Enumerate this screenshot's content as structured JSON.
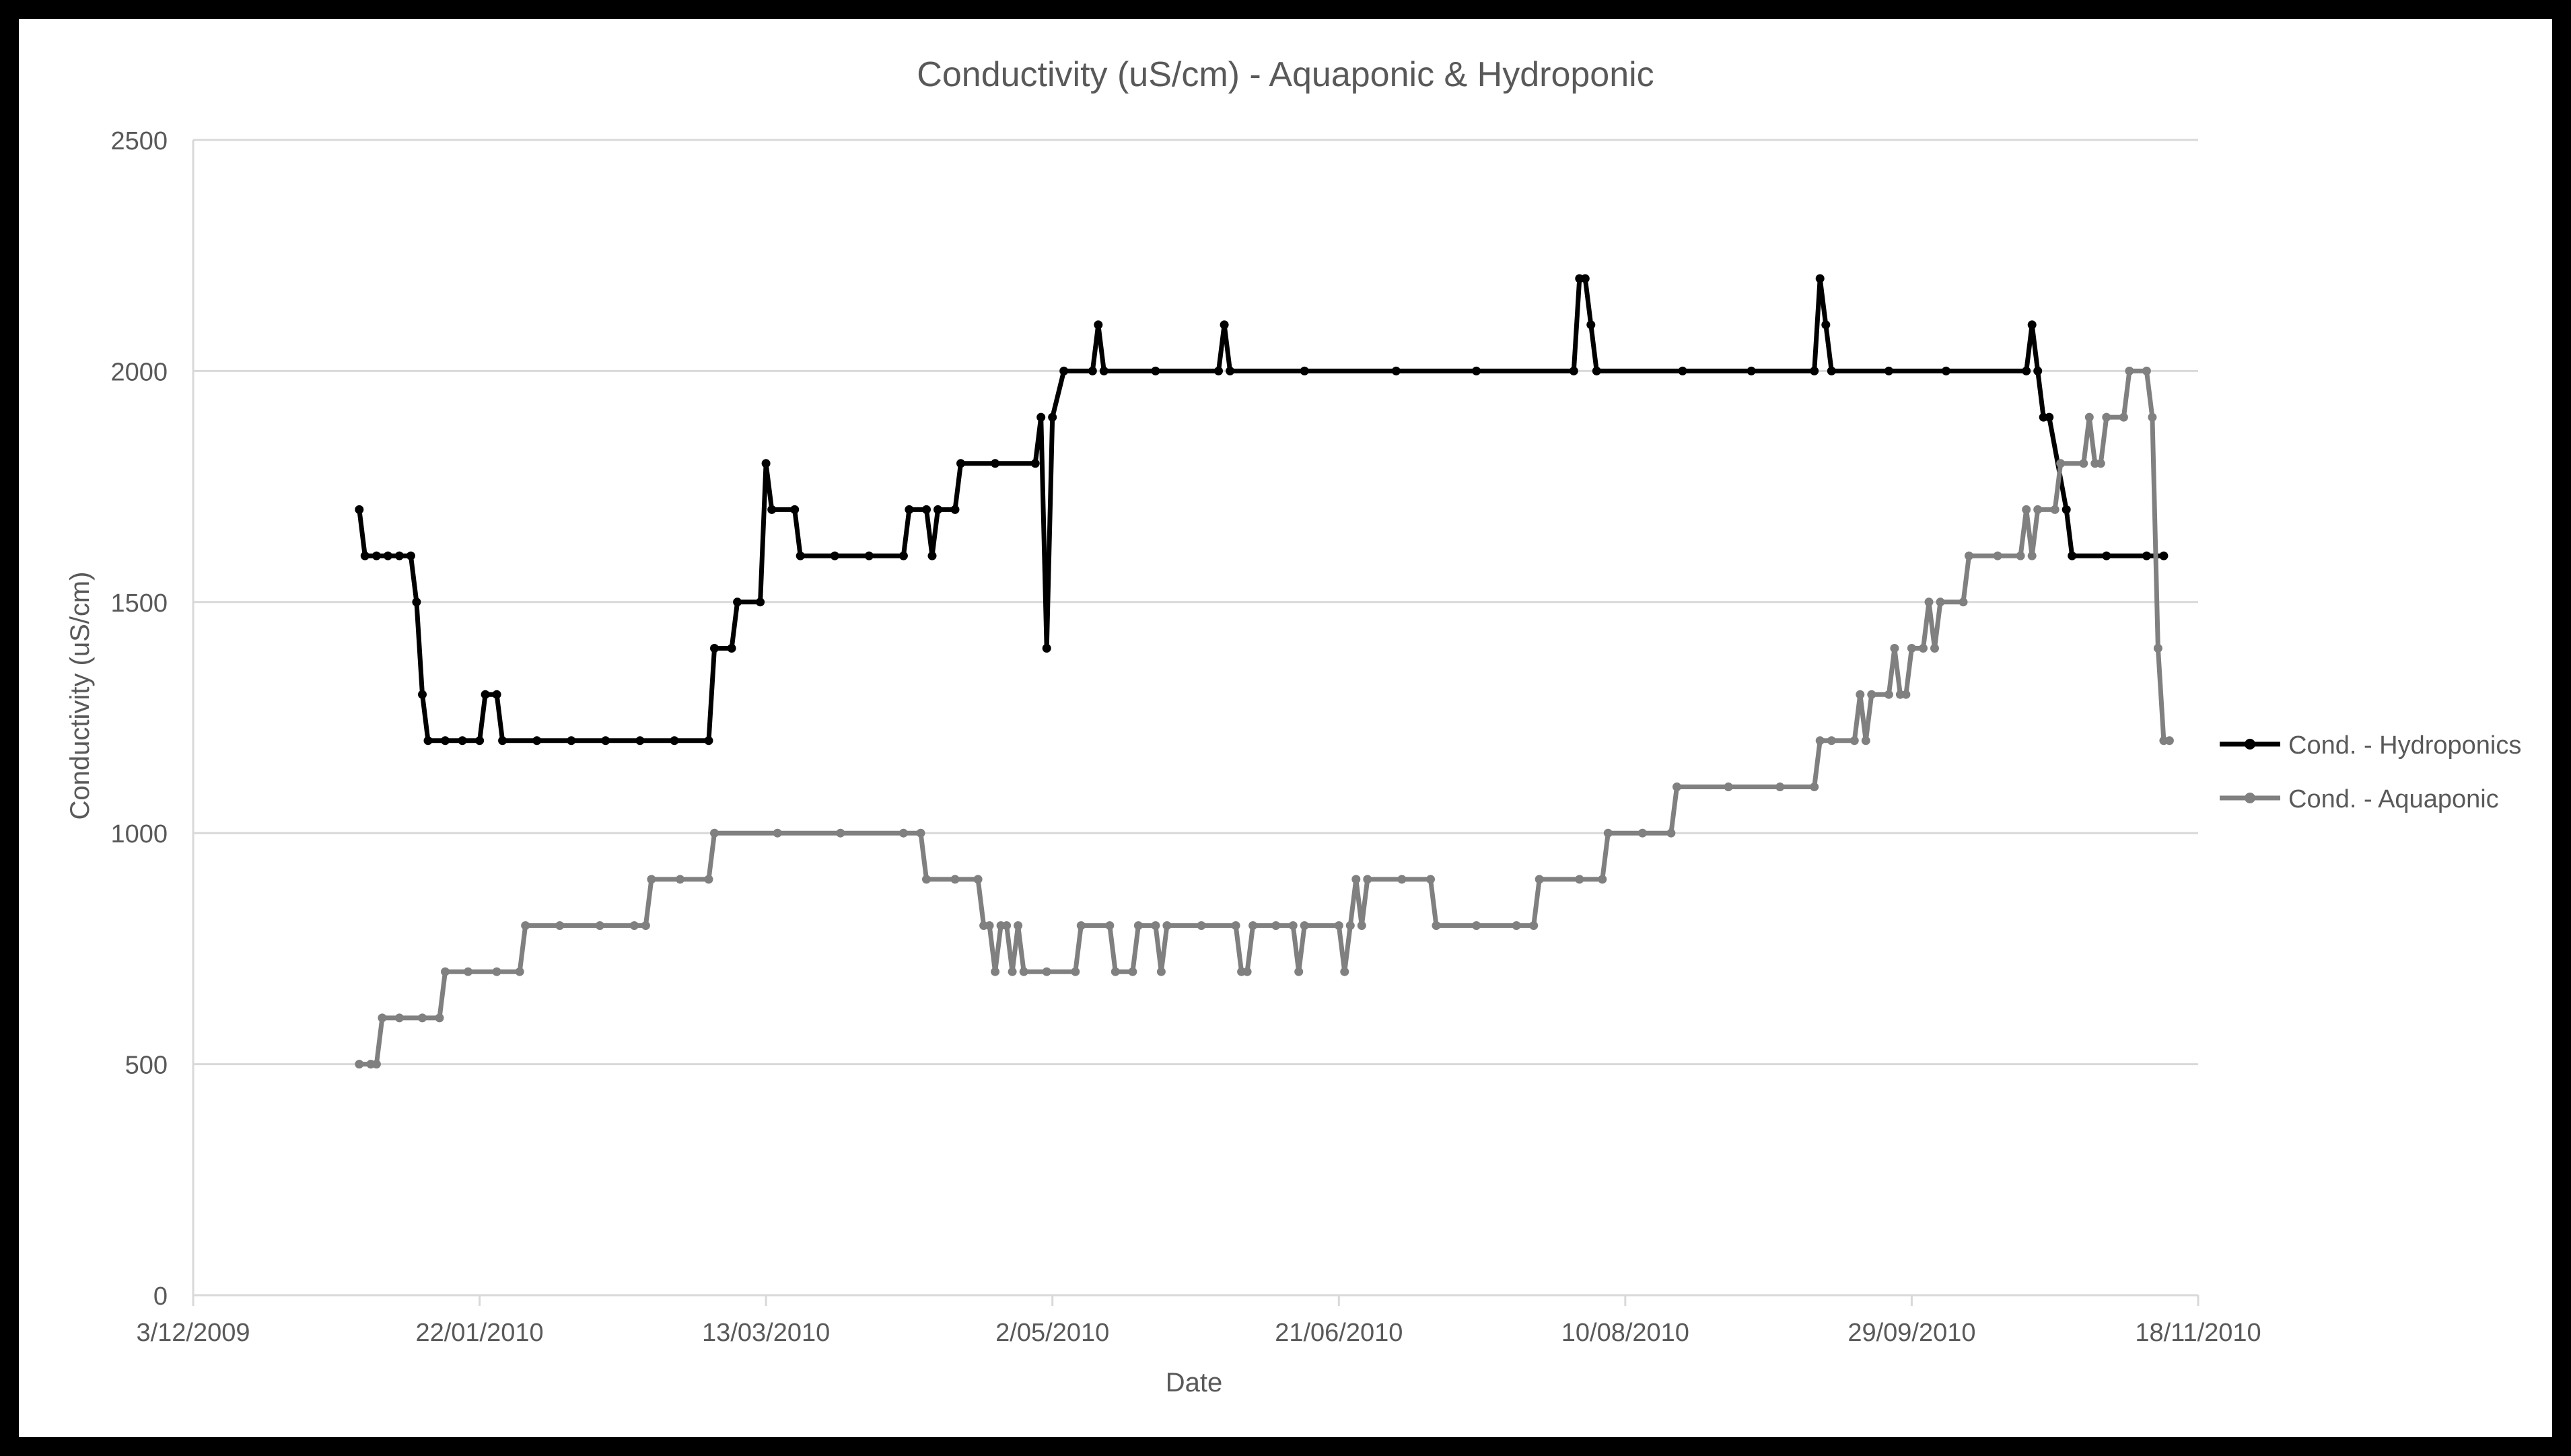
{
  "chart_data": {
    "type": "line",
    "title": "Conductivity (uS/cm) - Aquaponic & Hydroponic",
    "xlabel": "Date",
    "ylabel": "Conductivity (uS/cm)",
    "ylim": [
      0,
      2500
    ],
    "y_ticks": [
      0,
      500,
      1000,
      1500,
      2000,
      2500
    ],
    "xlim": [
      "2009-12-03",
      "2010-11-18"
    ],
    "x_ticks": [
      "2009-12-03",
      "2010-01-22",
      "2010-03-13",
      "2010-05-02",
      "2010-06-21",
      "2010-08-10",
      "2010-09-29",
      "2010-11-18"
    ],
    "x_tick_labels": [
      "3/12/2009",
      "22/01/2010",
      "13/03/2010",
      "2/05/2010",
      "21/06/2010",
      "10/08/2010",
      "29/09/2010",
      "18/11/2010"
    ],
    "grid": true,
    "legend_position": "right",
    "series": [
      {
        "name": "Cond. - Hydroponics",
        "color": "#000000",
        "points": [
          [
            "2010-01-01",
            1700
          ],
          [
            "2010-01-02",
            1600
          ],
          [
            "2010-01-04",
            1600
          ],
          [
            "2010-01-06",
            1600
          ],
          [
            "2010-01-08",
            1600
          ],
          [
            "2010-01-10",
            1600
          ],
          [
            "2010-01-11",
            1500
          ],
          [
            "2010-01-12",
            1300
          ],
          [
            "2010-01-13",
            1200
          ],
          [
            "2010-01-16",
            1200
          ],
          [
            "2010-01-19",
            1200
          ],
          [
            "2010-01-22",
            1200
          ],
          [
            "2010-01-23",
            1300
          ],
          [
            "2010-01-25",
            1300
          ],
          [
            "2010-01-26",
            1200
          ],
          [
            "2010-02-01",
            1200
          ],
          [
            "2010-02-07",
            1200
          ],
          [
            "2010-02-13",
            1200
          ],
          [
            "2010-02-19",
            1200
          ],
          [
            "2010-02-25",
            1200
          ],
          [
            "2010-03-03",
            1200
          ],
          [
            "2010-03-04",
            1400
          ],
          [
            "2010-03-07",
            1400
          ],
          [
            "2010-03-08",
            1500
          ],
          [
            "2010-03-12",
            1500
          ],
          [
            "2010-03-13",
            1800
          ],
          [
            "2010-03-14",
            1700
          ],
          [
            "2010-03-18",
            1700
          ],
          [
            "2010-03-19",
            1600
          ],
          [
            "2010-03-25",
            1600
          ],
          [
            "2010-03-31",
            1600
          ],
          [
            "2010-04-06",
            1600
          ],
          [
            "2010-04-07",
            1700
          ],
          [
            "2010-04-10",
            1700
          ],
          [
            "2010-04-11",
            1600
          ],
          [
            "2010-04-12",
            1700
          ],
          [
            "2010-04-15",
            1700
          ],
          [
            "2010-04-16",
            1800
          ],
          [
            "2010-04-22",
            1800
          ],
          [
            "2010-04-29",
            1800
          ],
          [
            "2010-04-30",
            1900
          ],
          [
            "2010-05-01",
            1400
          ],
          [
            "2010-05-02",
            1900
          ],
          [
            "2010-05-04",
            2000
          ],
          [
            "2010-05-09",
            2000
          ],
          [
            "2010-05-10",
            2100
          ],
          [
            "2010-05-11",
            2000
          ],
          [
            "2010-05-20",
            2000
          ],
          [
            "2010-05-31",
            2000
          ],
          [
            "2010-06-01",
            2100
          ],
          [
            "2010-06-02",
            2000
          ],
          [
            "2010-06-15",
            2000
          ],
          [
            "2010-07-01",
            2000
          ],
          [
            "2010-07-15",
            2000
          ],
          [
            "2010-08-01",
            2000
          ],
          [
            "2010-08-02",
            2200
          ],
          [
            "2010-08-03",
            2200
          ],
          [
            "2010-08-04",
            2100
          ],
          [
            "2010-08-05",
            2000
          ],
          [
            "2010-08-20",
            2000
          ],
          [
            "2010-09-01",
            2000
          ],
          [
            "2010-09-12",
            2000
          ],
          [
            "2010-09-13",
            2200
          ],
          [
            "2010-09-14",
            2100
          ],
          [
            "2010-09-15",
            2000
          ],
          [
            "2010-09-25",
            2000
          ],
          [
            "2010-10-05",
            2000
          ],
          [
            "2010-10-19",
            2000
          ],
          [
            "2010-10-20",
            2100
          ],
          [
            "2010-10-21",
            2000
          ],
          [
            "2010-10-22",
            1900
          ],
          [
            "2010-10-23",
            1900
          ],
          [
            "2010-10-26",
            1700
          ],
          [
            "2010-10-27",
            1600
          ],
          [
            "2010-11-02",
            1600
          ],
          [
            "2010-11-09",
            1600
          ],
          [
            "2010-11-12",
            1600
          ]
        ]
      },
      {
        "name": "Cond. - Aquaponic",
        "color": "#808080",
        "points": [
          [
            "2010-01-01",
            500
          ],
          [
            "2010-01-03",
            500
          ],
          [
            "2010-01-04",
            500
          ],
          [
            "2010-01-05",
            600
          ],
          [
            "2010-01-08",
            600
          ],
          [
            "2010-01-12",
            600
          ],
          [
            "2010-01-15",
            600
          ],
          [
            "2010-01-16",
            700
          ],
          [
            "2010-01-20",
            700
          ],
          [
            "2010-01-25",
            700
          ],
          [
            "2010-01-29",
            700
          ],
          [
            "2010-01-30",
            800
          ],
          [
            "2010-02-05",
            800
          ],
          [
            "2010-02-12",
            800
          ],
          [
            "2010-02-18",
            800
          ],
          [
            "2010-02-20",
            800
          ],
          [
            "2010-02-21",
            900
          ],
          [
            "2010-02-26",
            900
          ],
          [
            "2010-03-03",
            900
          ],
          [
            "2010-03-04",
            1000
          ],
          [
            "2010-03-15",
            1000
          ],
          [
            "2010-03-26",
            1000
          ],
          [
            "2010-04-06",
            1000
          ],
          [
            "2010-04-09",
            1000
          ],
          [
            "2010-04-10",
            900
          ],
          [
            "2010-04-15",
            900
          ],
          [
            "2010-04-19",
            900
          ],
          [
            "2010-04-20",
            800
          ],
          [
            "2010-04-21",
            800
          ],
          [
            "2010-04-22",
            700
          ],
          [
            "2010-04-23",
            800
          ],
          [
            "2010-04-24",
            800
          ],
          [
            "2010-04-25",
            700
          ],
          [
            "2010-04-26",
            800
          ],
          [
            "2010-04-27",
            700
          ],
          [
            "2010-05-01",
            700
          ],
          [
            "2010-05-06",
            700
          ],
          [
            "2010-05-07",
            800
          ],
          [
            "2010-05-12",
            800
          ],
          [
            "2010-05-13",
            700
          ],
          [
            "2010-05-16",
            700
          ],
          [
            "2010-05-17",
            800
          ],
          [
            "2010-05-20",
            800
          ],
          [
            "2010-05-21",
            700
          ],
          [
            "2010-05-22",
            800
          ],
          [
            "2010-05-28",
            800
          ],
          [
            "2010-06-03",
            800
          ],
          [
            "2010-06-04",
            700
          ],
          [
            "2010-06-05",
            700
          ],
          [
            "2010-06-06",
            800
          ],
          [
            "2010-06-10",
            800
          ],
          [
            "2010-06-13",
            800
          ],
          [
            "2010-06-14",
            700
          ],
          [
            "2010-06-15",
            800
          ],
          [
            "2010-06-21",
            800
          ],
          [
            "2010-06-22",
            700
          ],
          [
            "2010-06-23",
            800
          ],
          [
            "2010-06-24",
            900
          ],
          [
            "2010-06-25",
            800
          ],
          [
            "2010-06-26",
            900
          ],
          [
            "2010-07-02",
            900
          ],
          [
            "2010-07-07",
            900
          ],
          [
            "2010-07-08",
            800
          ],
          [
            "2010-07-15",
            800
          ],
          [
            "2010-07-22",
            800
          ],
          [
            "2010-07-25",
            800
          ],
          [
            "2010-07-26",
            900
          ],
          [
            "2010-08-02",
            900
          ],
          [
            "2010-08-06",
            900
          ],
          [
            "2010-08-07",
            1000
          ],
          [
            "2010-08-13",
            1000
          ],
          [
            "2010-08-18",
            1000
          ],
          [
            "2010-08-19",
            1100
          ],
          [
            "2010-08-28",
            1100
          ],
          [
            "2010-09-06",
            1100
          ],
          [
            "2010-09-12",
            1100
          ],
          [
            "2010-09-13",
            1200
          ],
          [
            "2010-09-15",
            1200
          ],
          [
            "2010-09-19",
            1200
          ],
          [
            "2010-09-20",
            1300
          ],
          [
            "2010-09-21",
            1200
          ],
          [
            "2010-09-22",
            1300
          ],
          [
            "2010-09-25",
            1300
          ],
          [
            "2010-09-26",
            1400
          ],
          [
            "2010-09-27",
            1300
          ],
          [
            "2010-09-28",
            1300
          ],
          [
            "2010-09-29",
            1400
          ],
          [
            "2010-10-01",
            1400
          ],
          [
            "2010-10-02",
            1500
          ],
          [
            "2010-10-03",
            1400
          ],
          [
            "2010-10-04",
            1500
          ],
          [
            "2010-10-08",
            1500
          ],
          [
            "2010-10-09",
            1600
          ],
          [
            "2010-10-14",
            1600
          ],
          [
            "2010-10-18",
            1600
          ],
          [
            "2010-10-19",
            1700
          ],
          [
            "2010-10-20",
            1600
          ],
          [
            "2010-10-21",
            1700
          ],
          [
            "2010-10-24",
            1700
          ],
          [
            "2010-10-25",
            1800
          ],
          [
            "2010-10-29",
            1800
          ],
          [
            "2010-10-30",
            1900
          ],
          [
            "2010-10-31",
            1800
          ],
          [
            "2010-11-01",
            1800
          ],
          [
            "2010-11-02",
            1900
          ],
          [
            "2010-11-05",
            1900
          ],
          [
            "2010-11-06",
            2000
          ],
          [
            "2010-11-09",
            2000
          ],
          [
            "2010-11-10",
            1900
          ],
          [
            "2010-11-11",
            1400
          ],
          [
            "2010-11-12",
            1200
          ],
          [
            "2010-11-13",
            1200
          ]
        ]
      }
    ]
  }
}
